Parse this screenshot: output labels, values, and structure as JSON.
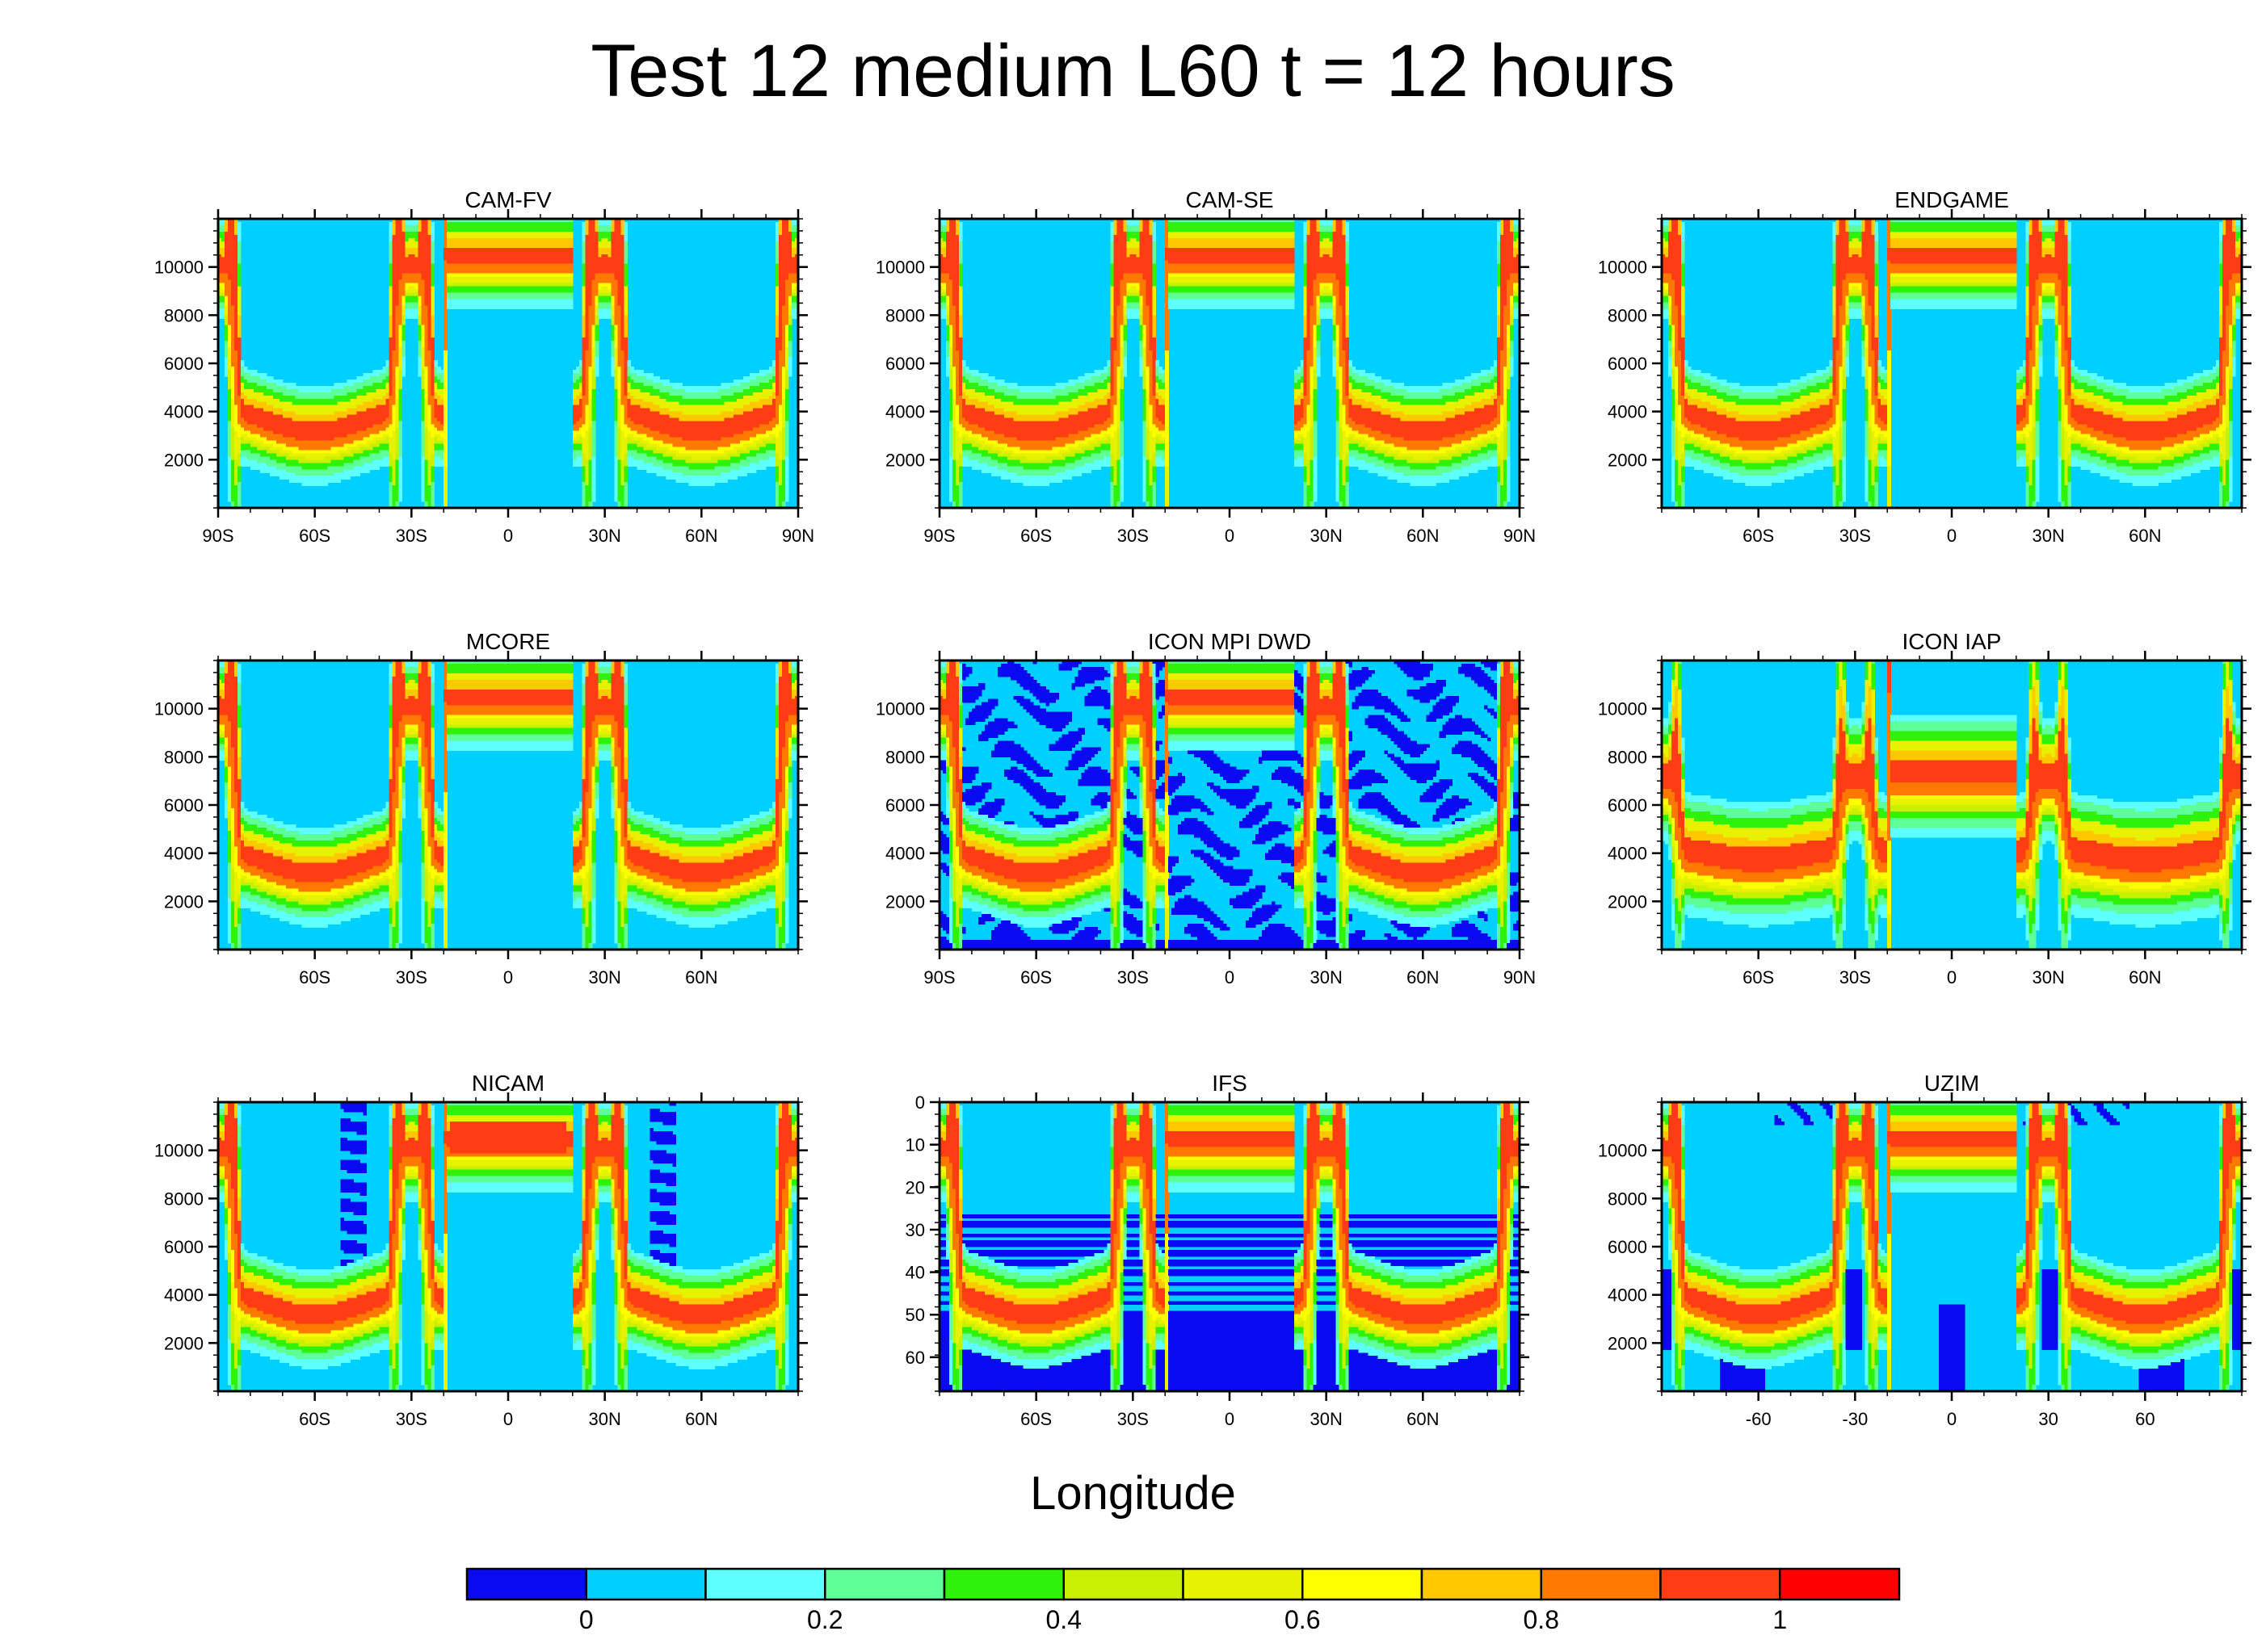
{
  "title": "Test 12 medium L60 t = 12 hours",
  "xlabel": "Longitude",
  "colors": {
    "field_background": "#00d0ff",
    "levels": [
      "#0a0af0",
      "#00d0ff",
      "#5effff",
      "#5eff96",
      "#2ef20a",
      "#c8f000",
      "#e6f200",
      "#ffff00",
      "#ffc800",
      "#ff7800",
      "#ff3c14",
      "#ff0000"
    ]
  },
  "chart_data": [
    {
      "type": "heatmap",
      "panel": "CAM-FV",
      "title": "CAM-FV",
      "pattern": "clean",
      "yticks": [
        "2000",
        "4000",
        "6000",
        "8000",
        "10000"
      ],
      "xticks": [
        "90S",
        "60S",
        "30S",
        "0",
        "30N",
        "60N",
        "90N"
      ],
      "xlim": [
        -90,
        90
      ],
      "ylim": [
        0,
        12000
      ]
    },
    {
      "type": "heatmap",
      "panel": "CAM-SE",
      "title": "CAM-SE",
      "pattern": "clean",
      "yticks": [
        "2000",
        "4000",
        "6000",
        "8000",
        "10000"
      ],
      "xticks": [
        "90S",
        "60S",
        "30S",
        "0",
        "30N",
        "60N",
        "90N"
      ],
      "xlim": [
        -90,
        90
      ],
      "ylim": [
        0,
        12000
      ]
    },
    {
      "type": "heatmap",
      "panel": "ENDGAME",
      "title": "ENDGAME",
      "pattern": "clean",
      "yticks": [
        "2000",
        "4000",
        "6000",
        "8000",
        "10000"
      ],
      "xticks": [
        "60S",
        "30S",
        "0",
        "30N",
        "60N"
      ],
      "xlim": [
        -90,
        90
      ],
      "ylim": [
        0,
        12000
      ]
    },
    {
      "type": "heatmap",
      "panel": "MCORE",
      "title": "MCORE",
      "pattern": "clean_specks",
      "yticks": [
        "2000",
        "4000",
        "6000",
        "8000",
        "10000"
      ],
      "xticks": [
        "60S",
        "30S",
        "0",
        "30N",
        "60N"
      ],
      "xlim": [
        -90,
        90
      ],
      "ylim": [
        0,
        12000
      ]
    },
    {
      "type": "heatmap",
      "panel": "ICON MPI DWD",
      "title": "ICON MPI DWD",
      "pattern": "noisy",
      "yticks": [
        "2000",
        "4000",
        "6000",
        "8000",
        "10000"
      ],
      "xticks": [
        "90S",
        "60S",
        "30S",
        "0",
        "30N",
        "60N",
        "90N"
      ],
      "xlim": [
        -90,
        90
      ],
      "ylim": [
        0,
        12000
      ]
    },
    {
      "type": "heatmap",
      "panel": "ICON IAP",
      "title": "ICON IAP",
      "pattern": "wide",
      "yticks": [
        "2000",
        "4000",
        "6000",
        "8000",
        "10000"
      ],
      "xticks": [
        "60S",
        "30S",
        "0",
        "30N",
        "60N"
      ],
      "xlim": [
        -90,
        90
      ],
      "ylim": [
        0,
        12000
      ]
    },
    {
      "type": "heatmap",
      "panel": "NICAM",
      "title": "NICAM",
      "pattern": "nicam",
      "yticks": [
        "2000",
        "4000",
        "6000",
        "8000",
        "10000"
      ],
      "xticks": [
        "60S",
        "30S",
        "0",
        "30N",
        "60N"
      ],
      "xlim": [
        -90,
        90
      ],
      "ylim": [
        0,
        12000
      ]
    },
    {
      "type": "heatmap",
      "panel": "IFS",
      "title": "IFS",
      "pattern": "ifs",
      "yticks": [
        "0",
        "10",
        "20",
        "30",
        "40",
        "50",
        "60"
      ],
      "xticks": [
        "60S",
        "30S",
        "0",
        "30N",
        "60N"
      ],
      "xlim": [
        -90,
        90
      ],
      "ylim": [
        68,
        0
      ]
    },
    {
      "type": "heatmap",
      "panel": "UZIM",
      "title": "UZIM",
      "pattern": "uzim",
      "yticks": [
        "2000",
        "4000",
        "6000",
        "8000",
        "10000"
      ],
      "xticks": [
        "-60",
        "-30",
        "0",
        "30",
        "60"
      ],
      "xlim": [
        -90,
        90
      ],
      "ylim": [
        0,
        12000
      ]
    }
  ],
  "colorbar": {
    "levels": 12,
    "labels": [
      "0",
      "0.2",
      "0.4",
      "0.6",
      "0.8",
      "1"
    ]
  }
}
